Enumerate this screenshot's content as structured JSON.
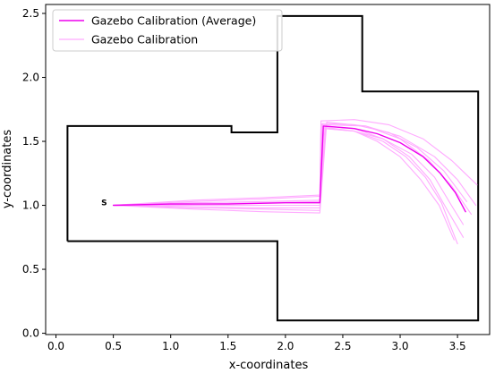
{
  "chart_data": {
    "type": "line",
    "title": "",
    "xlabel": "x-coordinates",
    "ylabel": "y-coordinates",
    "xlim": [
      -0.09,
      3.78
    ],
    "ylim": [
      -0.01,
      2.57
    ],
    "xticks": [
      0.0,
      0.5,
      1.0,
      1.5,
      2.0,
      2.5,
      3.0,
      3.5
    ],
    "xtick_labels": [
      "0.0",
      "0.5",
      "1.0",
      "1.5",
      "2.0",
      "2.5",
      "3.0",
      "3.5"
    ],
    "yticks": [
      0.0,
      0.5,
      1.0,
      1.5,
      2.0,
      2.5
    ],
    "ytick_labels": [
      "0.0",
      "0.5",
      "1.0",
      "1.5",
      "2.0",
      "2.5"
    ],
    "grid": false,
    "legend": {
      "location": "top-left"
    },
    "start_marker": {
      "label": "S",
      "x": 0.42,
      "y": 1.02
    },
    "boundary": {
      "name": "",
      "color": "#000000",
      "points": [
        [
          0.1,
          0.72
        ],
        [
          1.93,
          0.72
        ],
        [
          1.93,
          0.1
        ],
        [
          3.68,
          0.1
        ],
        [
          3.68,
          1.89
        ],
        [
          2.67,
          1.89
        ],
        [
          2.67,
          2.48
        ],
        [
          1.93,
          2.48
        ],
        [
          1.93,
          1.57
        ],
        [
          1.53,
          1.57
        ],
        [
          1.53,
          1.62
        ],
        [
          0.1,
          1.62
        ],
        [
          0.1,
          0.72
        ]
      ]
    },
    "series": [
      {
        "name": "Gazebo Calibration (Average)",
        "color": "#ee00ee",
        "role": "average",
        "points": [
          [
            0.5,
            1.0
          ],
          [
            1.0,
            1.01
          ],
          [
            1.5,
            1.01
          ],
          [
            2.0,
            1.02
          ],
          [
            2.3,
            1.02
          ],
          [
            2.33,
            1.62
          ],
          [
            2.6,
            1.6
          ],
          [
            2.8,
            1.56
          ],
          [
            3.0,
            1.49
          ],
          [
            3.2,
            1.38
          ],
          [
            3.35,
            1.25
          ],
          [
            3.48,
            1.1
          ],
          [
            3.57,
            0.95
          ]
        ]
      },
      {
        "name": "Gazebo Calibration",
        "color": "#ffaaff",
        "role": "run",
        "runs": [
          [
            [
              0.5,
              1.0
            ],
            [
              1.2,
              1.04
            ],
            [
              1.8,
              1.06
            ],
            [
              2.3,
              1.08
            ],
            [
              2.31,
              1.66
            ],
            [
              2.6,
              1.67
            ],
            [
              2.9,
              1.63
            ],
            [
              3.2,
              1.52
            ],
            [
              3.45,
              1.35
            ],
            [
              3.67,
              1.16
            ]
          ],
          [
            [
              0.5,
              1.0
            ],
            [
              1.2,
              1.03
            ],
            [
              1.8,
              1.05
            ],
            [
              2.3,
              1.07
            ],
            [
              2.31,
              1.63
            ],
            [
              2.7,
              1.62
            ],
            [
              3.0,
              1.54
            ],
            [
              3.3,
              1.38
            ],
            [
              3.5,
              1.2
            ],
            [
              3.66,
              1.0
            ]
          ],
          [
            [
              0.5,
              1.0
            ],
            [
              1.2,
              1.02
            ],
            [
              1.8,
              1.03
            ],
            [
              2.3,
              1.04
            ],
            [
              2.32,
              1.64
            ],
            [
              2.6,
              1.63
            ],
            [
              2.9,
              1.57
            ],
            [
              3.15,
              1.45
            ],
            [
              3.38,
              1.27
            ],
            [
              3.58,
              1.03
            ]
          ],
          [
            [
              0.5,
              1.0
            ],
            [
              1.2,
              1.01
            ],
            [
              1.8,
              1.02
            ],
            [
              2.3,
              1.03
            ],
            [
              2.33,
              1.6
            ],
            [
              2.6,
              1.58
            ],
            [
              2.85,
              1.52
            ],
            [
              3.1,
              1.4
            ],
            [
              3.3,
              1.22
            ],
            [
              3.46,
              0.98
            ],
            [
              3.55,
              0.85
            ]
          ],
          [
            [
              0.5,
              1.0
            ],
            [
              1.2,
              1.0
            ],
            [
              1.8,
              1.0
            ],
            [
              2.3,
              1.0
            ],
            [
              2.34,
              1.61
            ],
            [
              2.6,
              1.58
            ],
            [
              2.85,
              1.5
            ],
            [
              3.05,
              1.38
            ],
            [
              3.22,
              1.22
            ],
            [
              3.36,
              1.02
            ],
            [
              3.5,
              0.7
            ]
          ],
          [
            [
              0.5,
              1.0
            ],
            [
              1.2,
              0.99
            ],
            [
              1.8,
              0.98
            ],
            [
              2.3,
              0.98
            ],
            [
              2.35,
              1.62
            ],
            [
              2.6,
              1.6
            ],
            [
              2.85,
              1.52
            ],
            [
              3.08,
              1.38
            ],
            [
              3.26,
              1.2
            ],
            [
              3.4,
              0.98
            ],
            [
              3.55,
              0.75
            ]
          ],
          [
            [
              0.5,
              1.0
            ],
            [
              1.2,
              0.98
            ],
            [
              1.8,
              0.97
            ],
            [
              2.3,
              0.96
            ],
            [
              2.35,
              1.6
            ],
            [
              2.6,
              1.58
            ],
            [
              2.8,
              1.5
            ],
            [
              3.0,
              1.38
            ],
            [
              3.18,
              1.2
            ],
            [
              3.34,
              1.0
            ],
            [
              3.47,
              0.73
            ]
          ],
          [
            [
              0.5,
              1.0
            ],
            [
              1.2,
              0.97
            ],
            [
              1.8,
              0.95
            ],
            [
              2.3,
              0.94
            ],
            [
              2.36,
              1.65
            ],
            [
              2.7,
              1.62
            ],
            [
              3.0,
              1.52
            ],
            [
              3.25,
              1.35
            ],
            [
              3.45,
              1.15
            ],
            [
              3.62,
              0.93
            ]
          ]
        ]
      }
    ]
  }
}
